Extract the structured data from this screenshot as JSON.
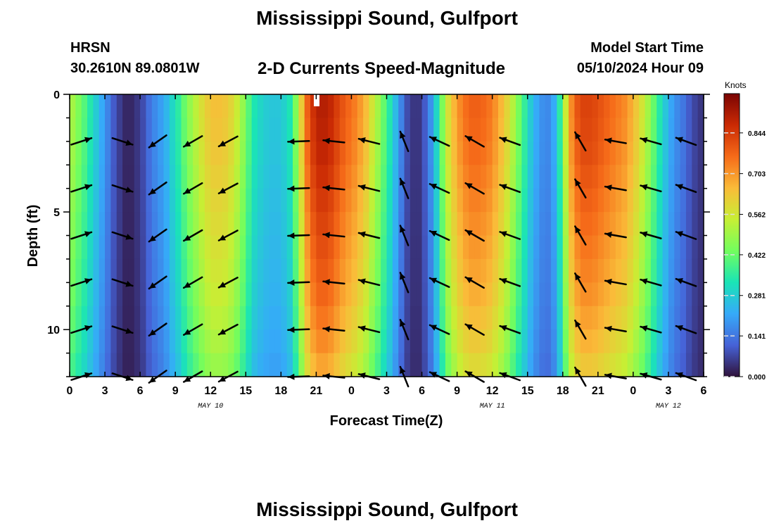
{
  "page": {
    "title": "Mississippi Sound, Gulfport",
    "title_repeat": "Mississippi Sound, Gulfport",
    "station": "HRSN",
    "latlon": "30.2610N  89.0801W",
    "subtitle": "2-D Currents Speed-Magnitude",
    "model_start_label": "Model Start Time",
    "model_start_value": "05/10/2024 Hour 09"
  },
  "chart_data": {
    "type": "heatmap",
    "title": "2-D Currents Speed-Magnitude",
    "xlabel": "Forecast Time(Z)",
    "ylabel": "Depth (ft)",
    "x_hours_since_0z_may10": [
      0,
      54
    ],
    "ylim": [
      0,
      12
    ],
    "y_inverted": true,
    "xtick_labels": [
      "0",
      "3",
      "6",
      "9",
      "12",
      "15",
      "18",
      "21",
      "0",
      "3",
      "6",
      "9",
      "12",
      "15",
      "18",
      "21",
      "0",
      "3",
      "6"
    ],
    "ytick_labels": [
      "0",
      "5",
      "10"
    ],
    "date_labels": [
      {
        "text": "MAY 10",
        "hour": 12
      },
      {
        "text": "MAY 11",
        "hour": 36
      },
      {
        "text": "MAY 12",
        "hour": 51
      }
    ],
    "colorbar": {
      "label": "Knots",
      "min": 0,
      "max": 0.98,
      "tick_labels": [
        "0.000",
        "0.141",
        "0.281",
        "0.422",
        "0.562",
        "0.703",
        "0.844"
      ],
      "colors": [
        "#30123b",
        "#4662d7",
        "#36aaf9",
        "#1ae4b6",
        "#72fe5e",
        "#c7ef34",
        "#fabb39",
        "#f66b19",
        "#ca2a04",
        "#7a0403"
      ]
    },
    "speed_by_hour": [
      {
        "hour": 0.0,
        "speed": 0.5
      },
      {
        "hour": 0.5,
        "speed": 0.45
      },
      {
        "hour": 1.0,
        "speed": 0.4
      },
      {
        "hour": 1.5,
        "speed": 0.34
      },
      {
        "hour": 2.0,
        "speed": 0.28
      },
      {
        "hour": 2.5,
        "speed": 0.22
      },
      {
        "hour": 3.0,
        "speed": 0.16
      },
      {
        "hour": 3.5,
        "speed": 0.1
      },
      {
        "hour": 4.0,
        "speed": 0.06
      },
      {
        "hour": 4.5,
        "speed": 0.03
      },
      {
        "hour": 5.0,
        "speed": 0.03
      },
      {
        "hour": 5.5,
        "speed": 0.05
      },
      {
        "hour": 6.0,
        "speed": 0.08
      },
      {
        "hour": 6.5,
        "speed": 0.13
      },
      {
        "hour": 7.0,
        "speed": 0.17
      },
      {
        "hour": 7.5,
        "speed": 0.2
      },
      {
        "hour": 8.0,
        "speed": 0.24
      },
      {
        "hour": 8.5,
        "speed": 0.3
      },
      {
        "hour": 9.0,
        "speed": 0.35
      },
      {
        "hour": 9.5,
        "speed": 0.42
      },
      {
        "hour": 10.0,
        "speed": 0.48
      },
      {
        "hour": 10.5,
        "speed": 0.53
      },
      {
        "hour": 11.0,
        "speed": 0.58
      },
      {
        "hour": 11.5,
        "speed": 0.62
      },
      {
        "hour": 12.0,
        "speed": 0.64
      },
      {
        "hour": 12.5,
        "speed": 0.64
      },
      {
        "hour": 13.0,
        "speed": 0.63
      },
      {
        "hour": 13.5,
        "speed": 0.6
      },
      {
        "hour": 14.0,
        "speed": 0.55
      },
      {
        "hour": 14.5,
        "speed": 0.48
      },
      {
        "hour": 15.0,
        "speed": 0.4
      },
      {
        "hour": 15.5,
        "speed": 0.33
      },
      {
        "hour": 16.0,
        "speed": 0.3
      },
      {
        "hour": 16.5,
        "speed": 0.28
      },
      {
        "hour": 17.0,
        "speed": 0.27
      },
      {
        "hour": 17.5,
        "speed": 0.27
      },
      {
        "hour": 18.0,
        "speed": 0.29
      },
      {
        "hour": 18.5,
        "speed": 0.33
      },
      {
        "hour": 19.0,
        "speed": 0.45
      },
      {
        "hour": 19.5,
        "speed": 0.62
      },
      {
        "hour": 20.0,
        "speed": 0.78
      },
      {
        "hour": 20.5,
        "speed": 0.86
      },
      {
        "hour": 21.0,
        "speed": 0.9
      },
      {
        "hour": 21.5,
        "speed": 0.9
      },
      {
        "hour": 22.0,
        "speed": 0.88
      },
      {
        "hour": 22.5,
        "speed": 0.84
      },
      {
        "hour": 23.0,
        "speed": 0.8
      },
      {
        "hour": 23.5,
        "speed": 0.77
      },
      {
        "hour": 24.0,
        "speed": 0.74
      },
      {
        "hour": 24.5,
        "speed": 0.7
      },
      {
        "hour": 25.0,
        "speed": 0.65
      },
      {
        "hour": 25.5,
        "speed": 0.57
      },
      {
        "hour": 26.0,
        "speed": 0.5
      },
      {
        "hour": 26.5,
        "speed": 0.42
      },
      {
        "hour": 27.0,
        "speed": 0.34
      },
      {
        "hour": 27.5,
        "speed": 0.25
      },
      {
        "hour": 28.0,
        "speed": 0.16
      },
      {
        "hour": 28.5,
        "speed": 0.08
      },
      {
        "hour": 29.0,
        "speed": 0.05
      },
      {
        "hour": 29.5,
        "speed": 0.05
      },
      {
        "hour": 30.0,
        "speed": 0.1
      },
      {
        "hour": 30.5,
        "speed": 0.18
      },
      {
        "hour": 31.0,
        "speed": 0.3
      },
      {
        "hour": 31.5,
        "speed": 0.45
      },
      {
        "hour": 32.0,
        "speed": 0.58
      },
      {
        "hour": 32.5,
        "speed": 0.66
      },
      {
        "hour": 33.0,
        "speed": 0.72
      },
      {
        "hour": 33.5,
        "speed": 0.76
      },
      {
        "hour": 34.0,
        "speed": 0.78
      },
      {
        "hour": 34.5,
        "speed": 0.78
      },
      {
        "hour": 35.0,
        "speed": 0.77
      },
      {
        "hour": 35.5,
        "speed": 0.75
      },
      {
        "hour": 36.0,
        "speed": 0.71
      },
      {
        "hour": 36.5,
        "speed": 0.66
      },
      {
        "hour": 37.0,
        "speed": 0.6
      },
      {
        "hour": 37.5,
        "speed": 0.52
      },
      {
        "hour": 38.0,
        "speed": 0.44
      },
      {
        "hour": 38.5,
        "speed": 0.36
      },
      {
        "hour": 39.0,
        "speed": 0.28
      },
      {
        "hour": 39.5,
        "speed": 0.22
      },
      {
        "hour": 40.0,
        "speed": 0.18
      },
      {
        "hour": 40.5,
        "speed": 0.17
      },
      {
        "hour": 41.0,
        "speed": 0.22
      },
      {
        "hour": 41.5,
        "speed": 0.35
      },
      {
        "hour": 42.0,
        "speed": 0.55
      },
      {
        "hour": 42.5,
        "speed": 0.72
      },
      {
        "hour": 43.0,
        "speed": 0.8
      },
      {
        "hour": 43.5,
        "speed": 0.83
      },
      {
        "hour": 44.0,
        "speed": 0.83
      },
      {
        "hour": 44.5,
        "speed": 0.82
      },
      {
        "hour": 45.0,
        "speed": 0.8
      },
      {
        "hour": 45.5,
        "speed": 0.78
      },
      {
        "hour": 46.0,
        "speed": 0.76
      },
      {
        "hour": 46.5,
        "speed": 0.74
      },
      {
        "hour": 47.0,
        "speed": 0.72
      },
      {
        "hour": 47.5,
        "speed": 0.68
      },
      {
        "hour": 48.0,
        "speed": 0.63
      },
      {
        "hour": 48.5,
        "speed": 0.57
      },
      {
        "hour": 49.0,
        "speed": 0.5
      },
      {
        "hour": 49.5,
        "speed": 0.42
      },
      {
        "hour": 50.0,
        "speed": 0.34
      },
      {
        "hour": 50.5,
        "speed": 0.27
      },
      {
        "hour": 51.0,
        "speed": 0.21
      },
      {
        "hour": 51.5,
        "speed": 0.17
      },
      {
        "hour": 52.0,
        "speed": 0.14
      },
      {
        "hour": 52.5,
        "speed": 0.1
      },
      {
        "hour": 53.0,
        "speed": 0.07
      },
      {
        "hour": 53.5,
        "speed": 0.05
      }
    ],
    "surface_attenuation": [
      {
        "depth": 0,
        "factor": 1.0
      },
      {
        "depth": 1,
        "factor": 0.99
      },
      {
        "depth": 2,
        "factor": 0.98
      },
      {
        "depth": 3,
        "factor": 0.96
      },
      {
        "depth": 4,
        "factor": 0.94
      },
      {
        "depth": 5,
        "factor": 0.92
      },
      {
        "depth": 6,
        "factor": 0.9
      },
      {
        "depth": 7,
        "factor": 0.88
      },
      {
        "depth": 8,
        "factor": 0.86
      },
      {
        "depth": 9,
        "factor": 0.83
      },
      {
        "depth": 10,
        "factor": 0.8
      },
      {
        "depth": 11,
        "factor": 0.76
      }
    ],
    "arrow_hours": [
      1,
      4.5,
      7.5,
      10.5,
      13.5,
      19.5,
      22.5,
      25.5,
      28.5,
      31.5,
      34.5,
      37.5,
      43.5,
      46.5,
      49.5,
      52.5
    ],
    "arrow_depths": [
      2,
      4,
      6,
      8,
      10,
      12
    ],
    "arrow_directions_deg": [
      18,
      -18,
      -145,
      -150,
      -152,
      -178,
      -186,
      -194,
      -248,
      155,
      150,
      160,
      -240,
      -190,
      -196,
      -200
    ]
  }
}
